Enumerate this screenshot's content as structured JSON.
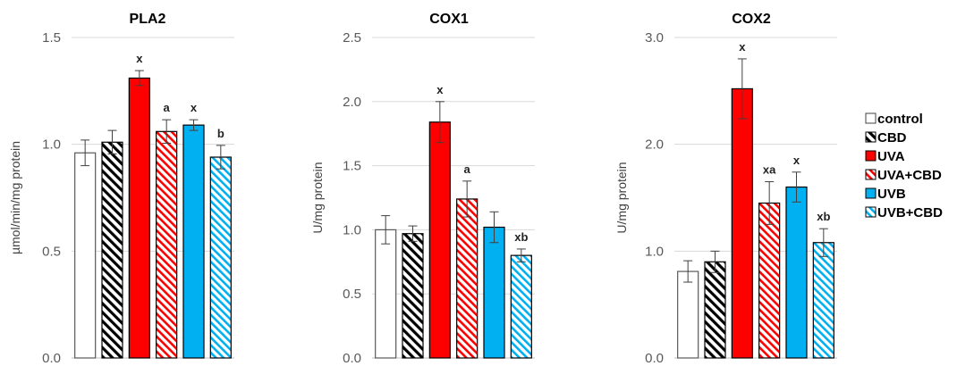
{
  "chart_data": [
    {
      "type": "bar",
      "title": "PLA2",
      "ylabel": "µmol/min/mg protein",
      "ylim": [
        0,
        1.5
      ],
      "yticks": [
        "0.0",
        "0.5",
        "1.0",
        "1.5"
      ],
      "categories": [
        "control",
        "CBD",
        "UVA",
        "UVA+CBD",
        "UVB",
        "UVB+CBD"
      ],
      "values": [
        0.96,
        1.01,
        1.31,
        1.06,
        1.09,
        0.94
      ],
      "errors": [
        0.06,
        0.055,
        0.035,
        0.055,
        0.025,
        0.055
      ],
      "annotations": [
        "",
        "",
        "x",
        "a",
        "x",
        "b"
      ],
      "grid": true
    },
    {
      "type": "bar",
      "title": "COX1",
      "ylabel": "U/mg protein",
      "ylim": [
        0,
        2.5
      ],
      "yticks": [
        "0.0",
        "0.5",
        "1.0",
        "1.5",
        "2.0",
        "2.5"
      ],
      "categories": [
        "control",
        "CBD",
        "UVA",
        "UVA+CBD",
        "UVB",
        "UVB+CBD"
      ],
      "values": [
        1.0,
        0.97,
        1.84,
        1.24,
        1.02,
        0.8
      ],
      "errors": [
        0.11,
        0.06,
        0.16,
        0.14,
        0.12,
        0.05
      ],
      "annotations": [
        "",
        "",
        "x",
        "a",
        "",
        "xb"
      ],
      "grid": true
    },
    {
      "type": "bar",
      "title": "COX2",
      "ylabel": "U/mg protein",
      "ylim": [
        0,
        3.0
      ],
      "yticks": [
        "0.0",
        "1.0",
        "2.0",
        "3.0"
      ],
      "categories": [
        "control",
        "CBD",
        "UVA",
        "UVA+CBD",
        "UVB",
        "UVB+CBD"
      ],
      "values": [
        0.81,
        0.9,
        2.52,
        1.45,
        1.6,
        1.08
      ],
      "errors": [
        0.1,
        0.1,
        0.28,
        0.2,
        0.14,
        0.13
      ],
      "annotations": [
        "",
        "",
        "x",
        "xa",
        "x",
        "xb"
      ],
      "grid": true
    }
  ],
  "legend": {
    "placement": "right",
    "items": [
      {
        "label": "control",
        "color": "#ffffff",
        "pattern": "none"
      },
      {
        "label": "CBD",
        "color": "#000000",
        "pattern": "hatch-black"
      },
      {
        "label": "UVA",
        "color": "#ff0000",
        "pattern": "solid"
      },
      {
        "label": "UVA+CBD",
        "color": "#ff0000",
        "pattern": "hatch-red"
      },
      {
        "label": "UVB",
        "color": "#00b0f0",
        "pattern": "solid"
      },
      {
        "label": "UVB+CBD",
        "color": "#00b0f0",
        "pattern": "hatch-blue"
      }
    ]
  },
  "colors": {
    "red": "#ff0000",
    "blue": "#00b0f0",
    "black": "#000000",
    "grid": "#d9d9d9"
  }
}
